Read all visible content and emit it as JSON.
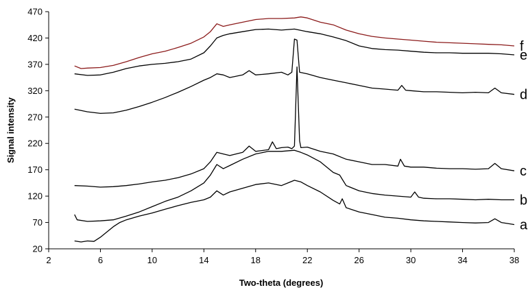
{
  "chart_data": {
    "type": "line",
    "title": "",
    "xlabel": "Two-theta (degrees)",
    "ylabel": "Signal intensity",
    "xlim": [
      2,
      38
    ],
    "ylim": [
      20,
      470
    ],
    "x_ticks": [
      2,
      6,
      10,
      14,
      18,
      22,
      26,
      30,
      34,
      38
    ],
    "y_ticks": [
      20,
      70,
      120,
      170,
      220,
      270,
      320,
      370,
      420,
      470
    ],
    "grid": false,
    "series": [
      {
        "name": "a",
        "color": "#000000",
        "points": [
          [
            4.0,
            35
          ],
          [
            4.5,
            33
          ],
          [
            5.0,
            35
          ],
          [
            5.5,
            34
          ],
          [
            6.0,
            42
          ],
          [
            6.5,
            52
          ],
          [
            7.0,
            62
          ],
          [
            7.5,
            70
          ],
          [
            8.0,
            75
          ],
          [
            9.0,
            82
          ],
          [
            10.0,
            88
          ],
          [
            11.0,
            95
          ],
          [
            12.0,
            102
          ],
          [
            13.0,
            108
          ],
          [
            14.0,
            113
          ],
          [
            14.5,
            118
          ],
          [
            15.0,
            130
          ],
          [
            15.5,
            122
          ],
          [
            16.0,
            128
          ],
          [
            17.0,
            135
          ],
          [
            18.0,
            142
          ],
          [
            19.0,
            145
          ],
          [
            20.0,
            140
          ],
          [
            20.5,
            145
          ],
          [
            21.0,
            150
          ],
          [
            21.5,
            147
          ],
          [
            22.0,
            140
          ],
          [
            23.0,
            128
          ],
          [
            24.0,
            112
          ],
          [
            24.5,
            105
          ],
          [
            24.7,
            115
          ],
          [
            25.0,
            98
          ],
          [
            26.0,
            90
          ],
          [
            27.0,
            85
          ],
          [
            28.0,
            80
          ],
          [
            29.0,
            78
          ],
          [
            30.0,
            75
          ],
          [
            31.0,
            73
          ],
          [
            32.0,
            72
          ],
          [
            33.0,
            71
          ],
          [
            34.0,
            70
          ],
          [
            35.0,
            69
          ],
          [
            36.0,
            70
          ],
          [
            36.5,
            77
          ],
          [
            37.0,
            70
          ],
          [
            38.0,
            66
          ]
        ]
      },
      {
        "name": "b",
        "color": "#000000",
        "points": [
          [
            4.0,
            85
          ],
          [
            4.2,
            75
          ],
          [
            5.0,
            72
          ],
          [
            6.0,
            73
          ],
          [
            7.0,
            75
          ],
          [
            8.0,
            82
          ],
          [
            9.0,
            90
          ],
          [
            10.0,
            100
          ],
          [
            11.0,
            110
          ],
          [
            12.0,
            118
          ],
          [
            13.0,
            130
          ],
          [
            14.0,
            145
          ],
          [
            14.5,
            160
          ],
          [
            15.0,
            180
          ],
          [
            15.5,
            172
          ],
          [
            16.0,
            178
          ],
          [
            17.0,
            190
          ],
          [
            18.0,
            200
          ],
          [
            19.0,
            205
          ],
          [
            20.0,
            205
          ],
          [
            21.0,
            207
          ],
          [
            21.5,
            203
          ],
          [
            22.0,
            198
          ],
          [
            23.0,
            185
          ],
          [
            24.0,
            165
          ],
          [
            24.5,
            160
          ],
          [
            24.7,
            152
          ],
          [
            25.0,
            140
          ],
          [
            26.0,
            130
          ],
          [
            27.0,
            125
          ],
          [
            28.0,
            122
          ],
          [
            29.0,
            120
          ],
          [
            30.0,
            118
          ],
          [
            30.3,
            128
          ],
          [
            30.6,
            118
          ],
          [
            31.0,
            116
          ],
          [
            32.0,
            115
          ],
          [
            33.0,
            115
          ],
          [
            34.0,
            114
          ],
          [
            35.0,
            113
          ],
          [
            36.0,
            114
          ],
          [
            37.0,
            113
          ],
          [
            38.0,
            113
          ]
        ]
      },
      {
        "name": "c",
        "color": "#000000",
        "points": [
          [
            4.0,
            140
          ],
          [
            5.0,
            139
          ],
          [
            6.0,
            137
          ],
          [
            7.0,
            138
          ],
          [
            8.0,
            140
          ],
          [
            9.0,
            143
          ],
          [
            10.0,
            147
          ],
          [
            11.0,
            150
          ],
          [
            12.0,
            155
          ],
          [
            13.0,
            162
          ],
          [
            14.0,
            172
          ],
          [
            14.5,
            185
          ],
          [
            15.0,
            203
          ],
          [
            15.5,
            200
          ],
          [
            16.0,
            197
          ],
          [
            17.0,
            203
          ],
          [
            17.5,
            215
          ],
          [
            18.0,
            205
          ],
          [
            19.0,
            208
          ],
          [
            19.3,
            223
          ],
          [
            19.6,
            210
          ],
          [
            20.0,
            212
          ],
          [
            20.5,
            213
          ],
          [
            20.8,
            210
          ],
          [
            21.0,
            215
          ],
          [
            21.2,
            365
          ],
          [
            21.4,
            225
          ],
          [
            21.5,
            212
          ],
          [
            22.0,
            213
          ],
          [
            23.0,
            205
          ],
          [
            24.0,
            200
          ],
          [
            25.0,
            190
          ],
          [
            26.0,
            185
          ],
          [
            27.0,
            180
          ],
          [
            28.0,
            180
          ],
          [
            29.0,
            177
          ],
          [
            29.2,
            190
          ],
          [
            29.5,
            177
          ],
          [
            30.0,
            175
          ],
          [
            31.0,
            175
          ],
          [
            32.0,
            173
          ],
          [
            33.0,
            172
          ],
          [
            34.0,
            172
          ],
          [
            35.0,
            171
          ],
          [
            36.0,
            172
          ],
          [
            36.5,
            182
          ],
          [
            37.0,
            172
          ],
          [
            38.0,
            168
          ]
        ]
      },
      {
        "name": "d",
        "color": "#000000",
        "points": [
          [
            4.0,
            285
          ],
          [
            5.0,
            280
          ],
          [
            6.0,
            277
          ],
          [
            7.0,
            278
          ],
          [
            8.0,
            283
          ],
          [
            9.0,
            290
          ],
          [
            10.0,
            298
          ],
          [
            11.0,
            307
          ],
          [
            12.0,
            317
          ],
          [
            13.0,
            328
          ],
          [
            14.0,
            340
          ],
          [
            14.5,
            345
          ],
          [
            15.0,
            352
          ],
          [
            15.5,
            350
          ],
          [
            16.0,
            345
          ],
          [
            17.0,
            350
          ],
          [
            17.5,
            358
          ],
          [
            18.0,
            350
          ],
          [
            19.0,
            352
          ],
          [
            20.0,
            355
          ],
          [
            20.5,
            350
          ],
          [
            20.8,
            355
          ],
          [
            21.0,
            418
          ],
          [
            21.2,
            416
          ],
          [
            21.4,
            355
          ],
          [
            22.0,
            352
          ],
          [
            23.0,
            345
          ],
          [
            24.0,
            340
          ],
          [
            25.0,
            335
          ],
          [
            26.0,
            330
          ],
          [
            27.0,
            325
          ],
          [
            28.0,
            323
          ],
          [
            29.0,
            321
          ],
          [
            29.3,
            330
          ],
          [
            29.6,
            321
          ],
          [
            30.0,
            320
          ],
          [
            31.0,
            318
          ],
          [
            32.0,
            318
          ],
          [
            33.0,
            317
          ],
          [
            34.0,
            316
          ],
          [
            35.0,
            317
          ],
          [
            36.0,
            316
          ],
          [
            36.5,
            325
          ],
          [
            37.0,
            316
          ],
          [
            38.0,
            313
          ]
        ]
      },
      {
        "name": "e",
        "color": "#000000",
        "points": [
          [
            4.0,
            352
          ],
          [
            5.0,
            349
          ],
          [
            6.0,
            350
          ],
          [
            7.0,
            355
          ],
          [
            8.0,
            362
          ],
          [
            9.0,
            367
          ],
          [
            10.0,
            370
          ],
          [
            11.0,
            372
          ],
          [
            12.0,
            375
          ],
          [
            13.0,
            380
          ],
          [
            14.0,
            392
          ],
          [
            14.5,
            405
          ],
          [
            15.0,
            420
          ],
          [
            15.5,
            425
          ],
          [
            16.0,
            428
          ],
          [
            17.0,
            432
          ],
          [
            18.0,
            436
          ],
          [
            19.0,
            437
          ],
          [
            20.0,
            435
          ],
          [
            21.0,
            437
          ],
          [
            22.0,
            432
          ],
          [
            23.0,
            428
          ],
          [
            24.0,
            422
          ],
          [
            25.0,
            415
          ],
          [
            26.0,
            405
          ],
          [
            27.0,
            400
          ],
          [
            28.0,
            398
          ],
          [
            29.0,
            397
          ],
          [
            30.0,
            395
          ],
          [
            31.0,
            393
          ],
          [
            32.0,
            392
          ],
          [
            33.0,
            392
          ],
          [
            34.0,
            391
          ],
          [
            35.0,
            391
          ],
          [
            36.0,
            391
          ],
          [
            37.0,
            390
          ],
          [
            38.0,
            388
          ]
        ]
      },
      {
        "name": "f",
        "color": "#8b1a1a",
        "points": [
          [
            4.0,
            367
          ],
          [
            4.5,
            362
          ],
          [
            5.0,
            363
          ],
          [
            6.0,
            364
          ],
          [
            7.0,
            368
          ],
          [
            8.0,
            375
          ],
          [
            9.0,
            383
          ],
          [
            10.0,
            390
          ],
          [
            11.0,
            395
          ],
          [
            12.0,
            402
          ],
          [
            13.0,
            410
          ],
          [
            14.0,
            422
          ],
          [
            14.5,
            432
          ],
          [
            15.0,
            447
          ],
          [
            15.5,
            442
          ],
          [
            16.0,
            445
          ],
          [
            17.0,
            450
          ],
          [
            18.0,
            455
          ],
          [
            19.0,
            457
          ],
          [
            20.0,
            457
          ],
          [
            21.0,
            458
          ],
          [
            21.5,
            460
          ],
          [
            22.0,
            458
          ],
          [
            23.0,
            450
          ],
          [
            24.0,
            445
          ],
          [
            25.0,
            435
          ],
          [
            26.0,
            428
          ],
          [
            27.0,
            423
          ],
          [
            28.0,
            420
          ],
          [
            29.0,
            418
          ],
          [
            30.0,
            416
          ],
          [
            31.0,
            414
          ],
          [
            32.0,
            412
          ],
          [
            33.0,
            411
          ],
          [
            34.0,
            410
          ],
          [
            35.0,
            409
          ],
          [
            36.0,
            408
          ],
          [
            37.0,
            407
          ],
          [
            38.0,
            405
          ]
        ]
      }
    ]
  }
}
